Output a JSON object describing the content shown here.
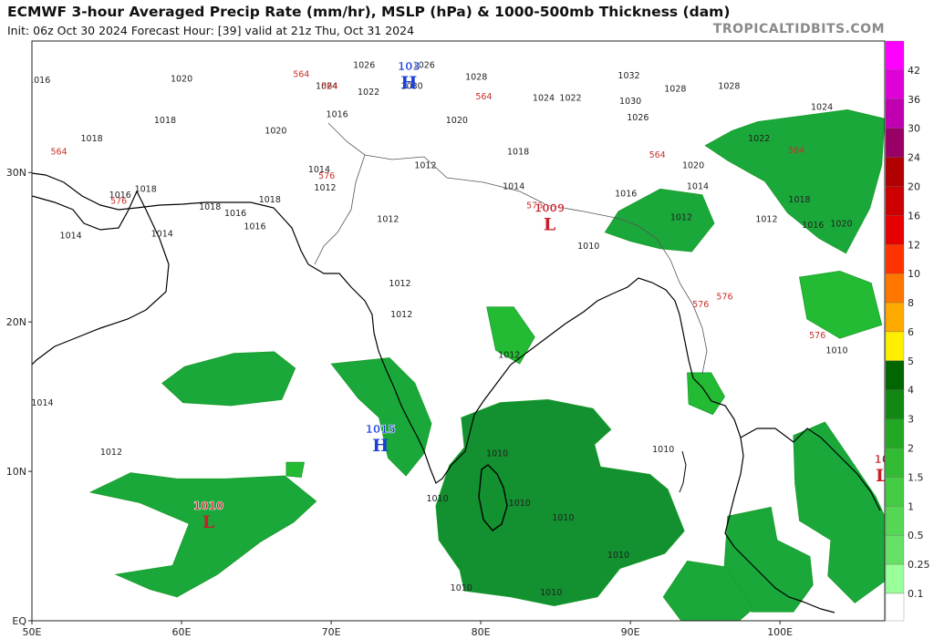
{
  "header": {
    "title": "ECMWF 3-hour Averaged Precip Rate (mm/hr), MSLP (hPa) & 1000-500mb Thickness (dam)",
    "subtitle": "Init: 06z Oct 30 2024   Forecast Hour: [39]   valid at 21z Thu, Oct 31 2024",
    "brand": "TROPICALTIDBITS.COM"
  },
  "axes": {
    "lon_labels": [
      "50E",
      "60E",
      "70E",
      "80E",
      "90E",
      "100E"
    ],
    "lat_labels": [
      "30N",
      "20N",
      "10N",
      "EQ"
    ]
  },
  "colorbar": {
    "labels": [
      "42",
      "36",
      "30",
      "24",
      "20",
      "16",
      "12",
      "10",
      "8",
      "6",
      "5",
      "4",
      "3",
      "2",
      "1.5",
      "1",
      "0.5",
      "0.25",
      "0.1"
    ],
    "colors": [
      "#ff00ff",
      "#e000d8",
      "#c000b0",
      "#990066",
      "#b00000",
      "#cc0000",
      "#e60000",
      "#ff3300",
      "#ff7700",
      "#ffaa00",
      "#ffee00",
      "#006600",
      "#118811",
      "#22a822",
      "#33bb33",
      "#44cc44",
      "#55d655",
      "#66e066",
      "#99ff99"
    ]
  },
  "pressure_centers": [
    {
      "type": "H",
      "value": "1015",
      "lon": 73.3,
      "lat": 11.7,
      "color": "#1a3fd8"
    },
    {
      "type": "H",
      "value": "103",
      "lon": 75.2,
      "lat": 36.0,
      "color": "#1a3fd8"
    },
    {
      "type": "L",
      "value": "1010",
      "lon": 61.8,
      "lat": 6.6,
      "color": "#c81e2a"
    },
    {
      "type": "L",
      "value": "1009",
      "lon": 84.6,
      "lat": 26.5,
      "color": "#c81e2a"
    },
    {
      "type": "L",
      "value": "10",
      "lon": 106.8,
      "lat": 9.7,
      "color": "#c81e2a"
    }
  ],
  "contour_labels": [
    {
      "text": "1012",
      "lon": 55.3,
      "lat": 11.1
    },
    {
      "text": "1014",
      "lon": 52.6,
      "lat": 25.6
    },
    {
      "text": "1014",
      "lon": 50.7,
      "lat": 14.4
    },
    {
      "text": "1012",
      "lon": 73.8,
      "lat": 26.7
    },
    {
      "text": "1012",
      "lon": 74.6,
      "lat": 22.4
    },
    {
      "text": "1012",
      "lon": 74.7,
      "lat": 20.3
    },
    {
      "text": "1012",
      "lon": 81.9,
      "lat": 17.6
    },
    {
      "text": "1010",
      "lon": 87.2,
      "lat": 24.9
    },
    {
      "text": "1010",
      "lon": 81.1,
      "lat": 11.0
    },
    {
      "text": "1010",
      "lon": 82.6,
      "lat": 7.7
    },
    {
      "text": "1010",
      "lon": 85.5,
      "lat": 6.7
    },
    {
      "text": "1010",
      "lon": 89.2,
      "lat": 4.2
    },
    {
      "text": "1010",
      "lon": 84.7,
      "lat": 1.7
    },
    {
      "text": "1010",
      "lon": 78.7,
      "lat": 2.0
    },
    {
      "text": "1010",
      "lon": 77.1,
      "lat": 8.0
    },
    {
      "text": "1010",
      "lon": 92.2,
      "lat": 11.3
    },
    {
      "text": "1012",
      "lon": 76.3,
      "lat": 30.3
    },
    {
      "text": "1014",
      "lon": 82.2,
      "lat": 28.9
    },
    {
      "text": "1018",
      "lon": 82.5,
      "lat": 31.2
    },
    {
      "text": "1020",
      "lon": 78.4,
      "lat": 33.3
    },
    {
      "text": "1024",
      "lon": 84.2,
      "lat": 34.8
    },
    {
      "text": "1026",
      "lon": 90.5,
      "lat": 33.5
    },
    {
      "text": "1028",
      "lon": 93.0,
      "lat": 35.4
    },
    {
      "text": "1030",
      "lon": 90.0,
      "lat": 34.6
    },
    {
      "text": "1032",
      "lon": 89.9,
      "lat": 36.3
    },
    {
      "text": "1028",
      "lon": 96.6,
      "lat": 35.6
    },
    {
      "text": "1024",
      "lon": 102.8,
      "lat": 34.2
    },
    {
      "text": "1022",
      "lon": 98.6,
      "lat": 32.1
    },
    {
      "text": "1020",
      "lon": 94.2,
      "lat": 30.3
    },
    {
      "text": "1016",
      "lon": 89.7,
      "lat": 28.4
    },
    {
      "text": "1018",
      "lon": 101.3,
      "lat": 28.0
    },
    {
      "text": "1020",
      "lon": 104.1,
      "lat": 26.4
    },
    {
      "text": "1016",
      "lon": 102.2,
      "lat": 26.3
    },
    {
      "text": "1014",
      "lon": 94.5,
      "lat": 28.9
    },
    {
      "text": "1012",
      "lon": 93.4,
      "lat": 26.8
    },
    {
      "text": "1012",
      "lon": 99.1,
      "lat": 26.7
    },
    {
      "text": "1010",
      "lon": 103.8,
      "lat": 17.9
    },
    {
      "text": "1016",
      "lon": 50.5,
      "lat": 36.0
    },
    {
      "text": "1020",
      "lon": 60.0,
      "lat": 36.1
    },
    {
      "text": "1018",
      "lon": 58.9,
      "lat": 33.3
    },
    {
      "text": "1018",
      "lon": 54.0,
      "lat": 32.1
    },
    {
      "text": "1020",
      "lon": 66.3,
      "lat": 32.6
    },
    {
      "text": "1016",
      "lon": 70.4,
      "lat": 33.7
    },
    {
      "text": "1014",
      "lon": 69.2,
      "lat": 30.0
    },
    {
      "text": "1012",
      "lon": 69.6,
      "lat": 28.8
    },
    {
      "text": "1018",
      "lon": 65.9,
      "lat": 28.0
    },
    {
      "text": "1016",
      "lon": 63.6,
      "lat": 27.1
    },
    {
      "text": "1018",
      "lon": 61.9,
      "lat": 27.5
    },
    {
      "text": "1016",
      "lon": 64.9,
      "lat": 26.2
    },
    {
      "text": "1014",
      "lon": 58.7,
      "lat": 25.7
    },
    {
      "text": "1016",
      "lon": 55.9,
      "lat": 28.3
    },
    {
      "text": "1018",
      "lon": 57.6,
      "lat": 28.7
    },
    {
      "text": "1022",
      "lon": 72.5,
      "lat": 35.2
    },
    {
      "text": "1024",
      "lon": 69.7,
      "lat": 35.6
    },
    {
      "text": "1026",
      "lon": 72.2,
      "lat": 37.0
    },
    {
      "text": "1030",
      "lon": 75.4,
      "lat": 35.6
    },
    {
      "text": "1026",
      "lon": 76.2,
      "lat": 37.0
    },
    {
      "text": "1028",
      "lon": 79.7,
      "lat": 36.2
    },
    {
      "text": "1022",
      "lon": 86.0,
      "lat": 34.8
    }
  ],
  "thickness_labels": [
    {
      "text": "564",
      "lon": 51.8,
      "lat": 31.2
    },
    {
      "text": "564",
      "lon": 68.0,
      "lat": 36.4
    },
    {
      "text": "564",
      "lon": 69.9,
      "lat": 35.6
    },
    {
      "text": "564",
      "lon": 80.2,
      "lat": 34.9
    },
    {
      "text": "576",
      "lon": 55.8,
      "lat": 27.9
    },
    {
      "text": "576",
      "lon": 69.7,
      "lat": 29.6
    },
    {
      "text": "576",
      "lon": 83.6,
      "lat": 27.6
    },
    {
      "text": "576",
      "lon": 94.7,
      "lat": 21.0
    },
    {
      "text": "576",
      "lon": 96.3,
      "lat": 21.5
    },
    {
      "text": "576",
      "lon": 102.5,
      "lat": 18.9
    },
    {
      "text": "564",
      "lon": 91.8,
      "lat": 31.0
    },
    {
      "text": "564",
      "lon": 101.1,
      "lat": 31.3
    }
  ],
  "precip_areas": [
    {
      "name": "arabian-sea-north",
      "shade": 2,
      "points": [
        [
          63.5,
          17.9
        ],
        [
          66.2,
          18.0
        ],
        [
          67.6,
          16.9
        ],
        [
          66.7,
          14.8
        ],
        [
          63.3,
          14.4
        ],
        [
          60.1,
          14.6
        ],
        [
          58.7,
          15.9
        ],
        [
          60.2,
          17.0
        ]
      ]
    },
    {
      "name": "arabian-sea-south",
      "shade": 2,
      "points": [
        [
          53.9,
          8.6
        ],
        [
          56.6,
          9.9
        ],
        [
          59.7,
          9.5
        ],
        [
          62.9,
          9.5
        ],
        [
          66.9,
          9.7
        ],
        [
          69.0,
          8.0
        ],
        [
          67.5,
          6.6
        ],
        [
          65.3,
          5.3
        ],
        [
          62.4,
          3.1
        ],
        [
          59.7,
          1.6
        ],
        [
          57.9,
          2.1
        ],
        [
          55.6,
          3.1
        ],
        [
          59.4,
          3.7
        ],
        [
          60.5,
          6.5
        ],
        [
          57.2,
          7.9
        ]
      ]
    },
    {
      "name": "india-west-coast",
      "shade": 2,
      "points": [
        [
          70.0,
          17.2
        ],
        [
          73.9,
          17.6
        ],
        [
          75.6,
          15.9
        ],
        [
          76.7,
          13.2
        ],
        [
          76.2,
          11.2
        ],
        [
          75.0,
          9.7
        ],
        [
          73.8,
          10.9
        ],
        [
          73.2,
          13.6
        ],
        [
          71.8,
          14.9
        ]
      ]
    },
    {
      "name": "bay-of-bengal-and-sri-lanka",
      "shade": 3,
      "points": [
        [
          78.7,
          13.6
        ],
        [
          80.0,
          14.1
        ],
        [
          81.3,
          14.6
        ],
        [
          84.5,
          14.8
        ],
        [
          87.5,
          14.2
        ],
        [
          88.7,
          12.8
        ],
        [
          87.6,
          11.8
        ],
        [
          88.0,
          10.3
        ],
        [
          91.3,
          9.8
        ],
        [
          92.5,
          8.8
        ],
        [
          93.6,
          6.0
        ],
        [
          92.3,
          4.5
        ],
        [
          89.3,
          3.5
        ],
        [
          87.8,
          1.6
        ],
        [
          84.9,
          1.0
        ],
        [
          82.0,
          1.6
        ],
        [
          78.9,
          2.0
        ],
        [
          78.6,
          3.4
        ],
        [
          77.2,
          5.4
        ],
        [
          77.0,
          7.7
        ],
        [
          77.9,
          10.4
        ],
        [
          78.9,
          11.6
        ]
      ]
    },
    {
      "name": "andaman-sea",
      "shade": 2,
      "points": [
        [
          96.5,
          7.0
        ],
        [
          99.4,
          7.6
        ],
        [
          99.8,
          5.4
        ],
        [
          102.0,
          4.3
        ],
        [
          102.2,
          2.4
        ],
        [
          100.9,
          0.6
        ],
        [
          98.1,
          0.6
        ],
        [
          96.2,
          2.5
        ]
      ]
    },
    {
      "name": "gulf-of-thailand-east",
      "shade": 2,
      "points": [
        [
          100.9,
          12.4
        ],
        [
          103.0,
          13.3
        ],
        [
          104.1,
          11.7
        ],
        [
          106.4,
          8.3
        ],
        [
          107.4,
          6.1
        ],
        [
          107.2,
          2.8
        ],
        [
          105.0,
          1.2
        ],
        [
          103.2,
          3.0
        ],
        [
          103.4,
          5.4
        ],
        [
          101.3,
          6.7
        ],
        [
          101.0,
          9.2
        ]
      ]
    },
    {
      "name": "tibet-east",
      "shade": 2,
      "points": [
        [
          98.5,
          33.4
        ],
        [
          101.5,
          33.8
        ],
        [
          104.5,
          34.2
        ],
        [
          107.0,
          33.6
        ],
        [
          106.8,
          30.5
        ],
        [
          106.0,
          27.6
        ],
        [
          104.4,
          24.6
        ],
        [
          102.6,
          25.6
        ],
        [
          100.5,
          27.3
        ],
        [
          99.0,
          29.4
        ],
        [
          96.5,
          30.8
        ],
        [
          95.0,
          31.8
        ],
        [
          96.8,
          32.8
        ]
      ]
    },
    {
      "name": "assam-myanmar",
      "shade": 2,
      "points": [
        [
          89.2,
          27.4
        ],
        [
          92.0,
          28.9
        ],
        [
          94.8,
          28.5
        ],
        [
          95.6,
          26.6
        ],
        [
          94.1,
          24.7
        ],
        [
          92.0,
          24.9
        ],
        [
          90.0,
          25.4
        ],
        [
          88.3,
          26.0
        ]
      ]
    },
    {
      "name": "south-china",
      "shade": 1,
      "points": [
        [
          101.3,
          23.0
        ],
        [
          104.0,
          23.4
        ],
        [
          106.1,
          22.6
        ],
        [
          106.8,
          19.8
        ],
        [
          104.0,
          18.9
        ],
        [
          101.8,
          20.2
        ]
      ]
    },
    {
      "name": "andhra",
      "shade": 1,
      "points": [
        [
          80.4,
          21.0
        ],
        [
          82.2,
          21.0
        ],
        [
          83.6,
          19.0
        ],
        [
          82.6,
          17.2
        ],
        [
          81.0,
          18.1
        ]
      ]
    },
    {
      "name": "myanmar-coast",
      "shade": 1,
      "points": [
        [
          93.8,
          16.6
        ],
        [
          95.4,
          16.6
        ],
        [
          96.3,
          15.0
        ],
        [
          95.5,
          13.8
        ],
        [
          93.9,
          14.5
        ]
      ]
    },
    {
      "name": "malaya-south",
      "shade": 2,
      "points": [
        [
          93.8,
          4.0
        ],
        [
          96.4,
          3.6
        ],
        [
          98.2,
          0.8
        ],
        [
          96.8,
          -0.4
        ],
        [
          93.7,
          -0.4
        ],
        [
          92.2,
          1.6
        ]
      ]
    },
    {
      "name": "gujarat-dots",
      "shade": 1,
      "points": [
        [
          67.0,
          10.6
        ],
        [
          68.2,
          10.6
        ],
        [
          68.0,
          9.6
        ],
        [
          67.0,
          9.7
        ]
      ]
    }
  ]
}
